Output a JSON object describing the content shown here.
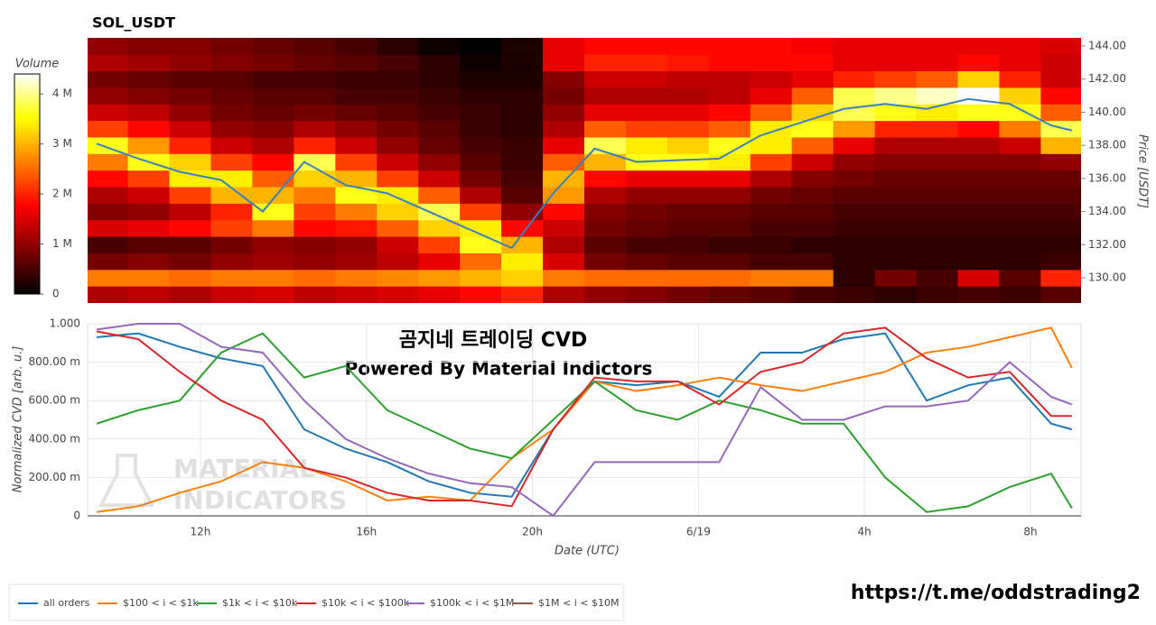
{
  "chart_data": [
    {
      "type": "heatmap",
      "title": "SOL_USDT",
      "ylabel": "Price [USDT]",
      "zlabel": "Volume",
      "colormap": "hot",
      "xlim": [
        9.28,
        33.22
      ],
      "ylim": [
        128.42,
        144.49
      ],
      "yticks": [
        {
          "value": 130,
          "label": "130.00"
        },
        {
          "value": 132,
          "label": "132.00"
        },
        {
          "value": 134,
          "label": "134.00"
        },
        {
          "value": 136,
          "label": "136.00"
        },
        {
          "value": 138,
          "label": "138.00"
        },
        {
          "value": 140,
          "label": "140.00"
        },
        {
          "value": 142,
          "label": "142.00"
        },
        {
          "value": 144,
          "label": "144.00"
        }
      ],
      "zlim": [
        0,
        4.4
      ],
      "zticks": [
        0,
        {
          "value": 1,
          "label": "1 M"
        },
        {
          "value": 2,
          "label": "2 M"
        },
        {
          "value": 3,
          "label": "3 M"
        },
        {
          "value": 4,
          "label": "4 M"
        }
      ],
      "xbins": [
        9.25,
        10.25,
        11.25,
        12.25,
        13.25,
        14.25,
        15.25,
        16.25,
        17.25,
        18.25,
        19.25,
        20.25,
        21.25,
        22.25,
        23.25,
        24.25,
        25.25,
        26.25,
        27.25,
        28.25,
        29.25,
        30.25,
        31.25,
        32.25,
        33.25
      ],
      "ybins": [
        128.5,
        129.5,
        130.5,
        131.5,
        132.5,
        133.5,
        134.5,
        135.5,
        136.5,
        137.5,
        138.5,
        139.5,
        140.5,
        141.5,
        142.5,
        143.5,
        144.5
      ],
      "z": [
        [
          1.2,
          1.3,
          1.2,
          1.4,
          1.5,
          1.3,
          1.4,
          1.5,
          1.6,
          1.8,
          2.0,
          1.2,
          1.0,
          0.9,
          0.8,
          0.7,
          0.6,
          0.5,
          0.4,
          0.3,
          0.4,
          0.5,
          0.4,
          0.6
        ],
        [
          2.6,
          2.6,
          2.5,
          2.6,
          2.6,
          2.5,
          2.6,
          2.7,
          2.8,
          3.0,
          3.2,
          2.6,
          2.5,
          2.5,
          2.5,
          2.5,
          2.6,
          2.6,
          0.3,
          0.8,
          0.5,
          1.5,
          0.6,
          2.0
        ],
        [
          0.8,
          0.9,
          0.8,
          1.0,
          1.1,
          1.0,
          1.1,
          1.3,
          1.6,
          2.5,
          3.4,
          1.5,
          0.8,
          0.7,
          0.6,
          0.6,
          0.5,
          0.5,
          0.3,
          0.3,
          0.3,
          0.3,
          0.3,
          0.4
        ],
        [
          0.5,
          0.6,
          0.6,
          0.8,
          1.0,
          0.9,
          1.0,
          1.4,
          2.2,
          3.6,
          3.0,
          1.2,
          0.6,
          0.5,
          0.5,
          0.4,
          0.4,
          0.3,
          0.3,
          0.3,
          0.3,
          0.3,
          0.3,
          0.3
        ],
        [
          1.5,
          1.6,
          1.8,
          2.2,
          2.6,
          1.8,
          1.9,
          2.4,
          3.2,
          3.4,
          1.8,
          1.4,
          0.8,
          0.7,
          0.6,
          0.6,
          0.5,
          0.5,
          0.4,
          0.4,
          0.4,
          0.4,
          0.4,
          0.4
        ],
        [
          0.9,
          1.0,
          1.3,
          2.0,
          3.6,
          2.2,
          2.6,
          3.2,
          3.8,
          2.2,
          1.0,
          1.8,
          0.9,
          0.8,
          0.7,
          0.7,
          0.6,
          0.6,
          0.5,
          0.5,
          0.5,
          0.5,
          0.5,
          0.5
        ],
        [
          1.2,
          1.4,
          2.2,
          3.0,
          3.0,
          2.6,
          3.6,
          3.4,
          2.4,
          1.2,
          0.6,
          2.8,
          1.2,
          1.0,
          1.0,
          1.0,
          0.8,
          0.7,
          0.6,
          0.6,
          0.6,
          0.6,
          0.6,
          0.6
        ],
        [
          1.8,
          2.2,
          3.4,
          3.4,
          2.4,
          3.2,
          3.0,
          2.2,
          1.4,
          0.8,
          0.5,
          3.0,
          1.8,
          1.6,
          1.6,
          1.6,
          1.2,
          0.9,
          0.8,
          0.7,
          0.7,
          0.7,
          0.7,
          0.7
        ],
        [
          2.6,
          3.6,
          3.2,
          2.2,
          1.8,
          3.8,
          2.2,
          1.4,
          1.0,
          0.6,
          0.4,
          2.4,
          3.0,
          3.6,
          3.6,
          3.4,
          2.2,
          1.4,
          1.0,
          0.9,
          0.9,
          0.9,
          0.9,
          1.0
        ],
        [
          3.6,
          2.8,
          2.0,
          1.4,
          1.2,
          2.0,
          1.4,
          1.0,
          0.7,
          0.5,
          0.4,
          1.6,
          3.8,
          3.4,
          3.2,
          3.6,
          3.4,
          2.4,
          1.6,
          1.2,
          1.2,
          1.2,
          1.4,
          3.0
        ],
        [
          2.2,
          1.8,
          1.4,
          1.0,
          0.9,
          1.2,
          1.0,
          0.8,
          0.6,
          0.4,
          0.3,
          1.2,
          2.4,
          2.2,
          2.2,
          2.4,
          3.4,
          3.6,
          2.8,
          2.0,
          2.0,
          1.8,
          2.6,
          3.8
        ],
        [
          1.4,
          1.3,
          1.0,
          0.8,
          0.7,
          0.8,
          0.7,
          0.6,
          0.5,
          0.4,
          0.3,
          1.0,
          1.6,
          1.6,
          1.6,
          1.8,
          2.4,
          3.2,
          3.8,
          3.6,
          3.4,
          3.6,
          3.6,
          2.4
        ],
        [
          1.0,
          0.9,
          0.8,
          0.7,
          0.6,
          0.6,
          0.5,
          0.5,
          0.4,
          0.3,
          0.3,
          0.8,
          1.2,
          1.2,
          1.2,
          1.3,
          1.6,
          2.4,
          3.8,
          4.0,
          4.2,
          4.4,
          3.2,
          1.8
        ],
        [
          0.8,
          0.7,
          0.6,
          0.6,
          0.5,
          0.5,
          0.4,
          0.4,
          0.3,
          0.2,
          0.2,
          0.9,
          1.4,
          1.4,
          1.3,
          1.3,
          1.4,
          1.6,
          2.0,
          2.2,
          2.4,
          3.2,
          2.0,
          1.4
        ],
        [
          1.2,
          1.1,
          1.0,
          0.9,
          0.8,
          0.7,
          0.6,
          0.5,
          0.3,
          0.1,
          0.2,
          1.6,
          2.0,
          2.0,
          1.9,
          1.8,
          1.8,
          1.8,
          1.6,
          1.6,
          1.6,
          1.8,
          1.6,
          1.4
        ],
        [
          1.0,
          0.9,
          0.9,
          0.8,
          0.7,
          0.6,
          0.5,
          0.3,
          0.1,
          0.0,
          0.2,
          1.6,
          1.8,
          1.8,
          1.8,
          1.8,
          1.8,
          1.7,
          1.6,
          1.6,
          1.6,
          1.6,
          1.6,
          1.5
        ]
      ],
      "line": {
        "color": "#3a7fc0",
        "x": [
          9.5,
          10.5,
          11.5,
          12.5,
          13.5,
          14.5,
          15.5,
          16.5,
          17.5,
          18.5,
          19.5,
          20.5,
          21.5,
          22.5,
          23.5,
          24.5,
          25.5,
          26.5,
          27.5,
          28.5,
          29.5,
          30.5,
          31.5,
          32.5,
          33
        ],
        "values": [
          138.1,
          137.2,
          136.4,
          135.9,
          134.0,
          137.0,
          135.6,
          135.1,
          134.0,
          132.9,
          131.8,
          135.1,
          137.8,
          137.0,
          137.1,
          137.2,
          138.6,
          139.4,
          140.2,
          140.5,
          140.2,
          140.8,
          140.5,
          139.2,
          138.9
        ]
      }
    },
    {
      "type": "line",
      "ylabel": "Normalized CVD [arb. u.]",
      "xlabel": "Date (UTC)",
      "grid": true,
      "legend": "bottom-left",
      "annotations": [
        "곰지네 트레이딩 CVD",
        "Powered By Material Indictors"
      ],
      "watermark": [
        "MATERIAL",
        "INDICATORS"
      ],
      "xlim": [
        9.28,
        33.22
      ],
      "xticks": [
        {
          "value": 12,
          "label": "12h"
        },
        {
          "value": 16,
          "label": "16h"
        },
        {
          "value": 20,
          "label": "20h"
        },
        {
          "value": 24,
          "label": "6/19"
        },
        {
          "value": 28,
          "label": "4h"
        },
        {
          "value": 32,
          "label": "8h"
        }
      ],
      "ylim": [
        0,
        1
      ],
      "yticks": [
        0,
        {
          "value": 0.2,
          "label": "200.00 m"
        },
        {
          "value": 0.4,
          "label": "400.00 m"
        },
        {
          "value": 0.6,
          "label": "600.00 m"
        },
        {
          "value": 0.8,
          "label": "800.00 m"
        },
        {
          "value": 1,
          "label": "1.000"
        }
      ],
      "x": [
        9.5,
        10.5,
        11.5,
        12.5,
        13.5,
        14.5,
        15.5,
        16.5,
        17.5,
        18.5,
        19.5,
        20.5,
        21.5,
        22.5,
        23.5,
        24.5,
        25.5,
        26.5,
        27.5,
        28.5,
        29.5,
        30.5,
        31.5,
        32.5,
        33
      ],
      "series": [
        {
          "name": "all orders",
          "color": "#1f77b4",
          "values": [
            0.93,
            0.95,
            0.88,
            0.82,
            0.78,
            0.45,
            0.35,
            0.28,
            0.18,
            0.12,
            0.1,
            0.45,
            0.7,
            0.68,
            0.7,
            0.62,
            0.85,
            0.85,
            0.92,
            0.95,
            0.6,
            0.68,
            0.72,
            0.48,
            0.45
          ]
        },
        {
          "name": "$100 < i < $1k",
          "color": "#ff7f0e",
          "values": [
            0.02,
            0.05,
            0.12,
            0.18,
            0.28,
            0.25,
            0.18,
            0.08,
            0.1,
            0.08,
            0.3,
            0.45,
            0.7,
            0.65,
            0.68,
            0.72,
            0.68,
            0.65,
            0.7,
            0.75,
            0.85,
            0.88,
            0.93,
            0.98,
            0.77
          ]
        },
        {
          "name": "$1k < i < $10k",
          "color": "#2ca02c",
          "values": [
            0.48,
            0.55,
            0.6,
            0.85,
            0.95,
            0.72,
            0.78,
            0.55,
            0.45,
            0.35,
            0.3,
            0.5,
            0.7,
            0.55,
            0.5,
            0.6,
            0.55,
            0.48,
            0.48,
            0.2,
            0.02,
            0.05,
            0.15,
            0.22,
            0.04
          ]
        },
        {
          "name": "$10k < i < $100k",
          "color": "#d62728",
          "values": [
            0.96,
            0.92,
            0.75,
            0.6,
            0.5,
            0.25,
            0.2,
            0.12,
            0.08,
            0.08,
            0.05,
            0.45,
            0.72,
            0.7,
            0.7,
            0.58,
            0.75,
            0.8,
            0.95,
            0.98,
            0.82,
            0.72,
            0.75,
            0.52,
            0.52
          ]
        },
        {
          "name": "$100k < i < $1M",
          "color": "#9467bd",
          "values": [
            0.97,
            1.0,
            1.0,
            0.88,
            0.85,
            0.6,
            0.4,
            0.3,
            0.22,
            0.17,
            0.15,
            0.0,
            0.28,
            0.28,
            0.28,
            0.28,
            0.67,
            0.5,
            0.5,
            0.57,
            0.57,
            0.6,
            0.8,
            0.62,
            0.58
          ]
        },
        {
          "name": "$1M < i < $10M",
          "color": "#8c564b",
          "values": [
            null,
            null,
            null,
            null,
            null,
            null,
            null,
            null,
            null,
            null,
            null,
            null,
            null,
            null,
            null,
            null,
            null,
            null,
            null,
            null,
            null,
            null,
            null,
            null,
            null
          ]
        }
      ]
    }
  ],
  "footer_link": "https://t.me/oddstrading2"
}
